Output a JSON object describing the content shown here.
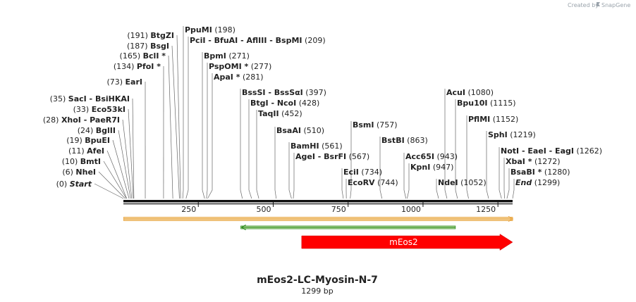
{
  "credit": "Created by",
  "brand": "SnapGene",
  "title": "mEos2-LC-Myosin-N-7",
  "length_label": "1299 bp",
  "length_bp": 1299,
  "ticks": [
    {
      "label": "250",
      "bp": 250
    },
    {
      "label": "500",
      "bp": 500
    },
    {
      "label": "750",
      "bp": 750
    },
    {
      "label": "1000",
      "bp": 1000
    },
    {
      "label": "1250",
      "bp": 1250
    }
  ],
  "features": [
    {
      "name": "",
      "start": 1,
      "end": 1299,
      "direction": "forward",
      "color": "#f6d8a4",
      "edge": "#e8a33d"
    },
    {
      "name": "",
      "start": 392,
      "end": 1108,
      "direction": "reverse",
      "color": "#cfe8b4",
      "edge": "#2e8b1f"
    },
    {
      "name": "mEos2",
      "start": 595,
      "end": 1299,
      "direction": "forward",
      "color": "#ff0000",
      "edge": "#cc0000"
    }
  ],
  "labels": [
    {
      "id": "start",
      "pre": "(0)",
      "name": "Start",
      "italic": true,
      "bp": 0
    },
    {
      "id": "nhei",
      "pre": "(6)",
      "name": "NheI",
      "bp": 6
    },
    {
      "id": "bmti",
      "pre": "(10)",
      "name": "BmtI",
      "bp": 10
    },
    {
      "id": "afei",
      "pre": "(11)",
      "name": "AfeI",
      "bp": 11
    },
    {
      "id": "bpuei",
      "pre": "(19)",
      "name": "BpuEI",
      "bp": 19
    },
    {
      "id": "bglii",
      "pre": "(24)",
      "name": "BglII",
      "bp": 24
    },
    {
      "id": "xhoi",
      "pre": "(28)",
      "name": "XhoI  - PaeR7I",
      "bp": 28
    },
    {
      "id": "eco53ki",
      "pre": "(33)",
      "name": "Eco53kI",
      "bp": 33
    },
    {
      "id": "saci",
      "pre": "(35)",
      "name": "SacI  - BsiHKAI",
      "bp": 35
    },
    {
      "id": "eari",
      "pre": "(73)",
      "name": "EarI",
      "bp": 73
    },
    {
      "id": "pfoi",
      "pre": "(134)",
      "name": "PfoI *",
      "bp": 134
    },
    {
      "id": "bcli",
      "pre": "(165)",
      "name": "BclI *",
      "bp": 165
    },
    {
      "id": "bsgi",
      "pre": "(187)",
      "name": "BsgI",
      "bp": 187
    },
    {
      "id": "btgzi",
      "pre": "(191)",
      "name": "BtgZI",
      "bp": 191
    },
    {
      "id": "ppumi",
      "name": "PpuMI",
      "post": "(198)",
      "bp": 198
    },
    {
      "id": "pcii",
      "name": "PciI  - BfuAI  - AflIII  - BspMI",
      "post": "(209)",
      "bp": 209
    },
    {
      "id": "bpmi",
      "name": "BpmI",
      "post": "(271)",
      "bp": 271
    },
    {
      "id": "pspomi",
      "name": "PspOMI *",
      "post": "(277)",
      "bp": 277
    },
    {
      "id": "apai",
      "name": "ApaI *",
      "post": "(281)",
      "bp": 281
    },
    {
      "id": "bsssi",
      "name": "BssSI  - BssSαI",
      "post": "(397)",
      "bp": 397
    },
    {
      "id": "btgi",
      "name": "BtgI  - NcoI",
      "post": "(428)",
      "bp": 428
    },
    {
      "id": "taqii",
      "name": "TaqII",
      "post": "(452)",
      "bp": 452
    },
    {
      "id": "bsaai",
      "name": "BsaAI",
      "post": "(510)",
      "bp": 510
    },
    {
      "id": "bamhi",
      "name": "BamHI",
      "post": "(561)",
      "bp": 561
    },
    {
      "id": "agei",
      "name": "AgeI  - BsrFI",
      "post": "(567)",
      "bp": 567
    },
    {
      "id": "ecii",
      "name": "EciI",
      "post": "(734)",
      "bp": 734
    },
    {
      "id": "ecorv",
      "name": "EcoRV",
      "post": "(744)",
      "bp": 744
    },
    {
      "id": "bsmi",
      "name": "BsmI",
      "post": "(757)",
      "bp": 757
    },
    {
      "id": "bstbi",
      "name": "BstBI",
      "post": "(863)",
      "bp": 863
    },
    {
      "id": "acc65i",
      "name": "Acc65I",
      "post": "(943)",
      "bp": 943
    },
    {
      "id": "kpni",
      "name": "KpnI",
      "post": "(947)",
      "bp": 947
    },
    {
      "id": "ndei",
      "name": "NdeI",
      "post": "(1052)",
      "bp": 1052
    },
    {
      "id": "acui",
      "name": "AcuI",
      "post": "(1080)",
      "bp": 1080
    },
    {
      "id": "bpu10i",
      "name": "Bpu10I",
      "post": "(1115)",
      "bp": 1115
    },
    {
      "id": "pflmi",
      "name": "PflMI",
      "post": "(1152)",
      "bp": 1152
    },
    {
      "id": "sphi",
      "name": "SphI",
      "post": "(1219)",
      "bp": 1219
    },
    {
      "id": "noti",
      "name": "NotI  - EaeI  - EagI",
      "post": "(1262)",
      "bp": 1262
    },
    {
      "id": "xbai",
      "name": "XbaI *",
      "post": "(1272)",
      "bp": 1272
    },
    {
      "id": "bsabi",
      "name": "BsaBI *",
      "post": "(1280)",
      "bp": 1280
    },
    {
      "id": "end",
      "name": "End",
      "post": "(1299)",
      "italic": true,
      "bp": 1299
    }
  ]
}
